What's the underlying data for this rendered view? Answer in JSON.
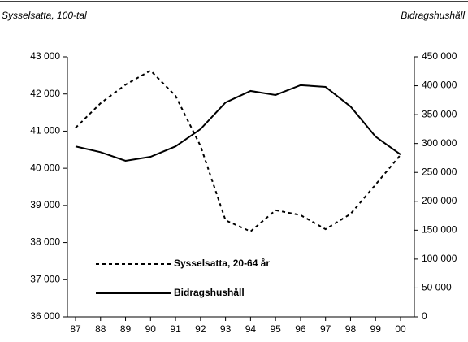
{
  "chart_data": {
    "type": "line",
    "y_label": "Sysselsatta, 100-tal",
    "y2_label": "Bidragshushåll",
    "categories": [
      "87",
      "88",
      "89",
      "90",
      "91",
      "92",
      "93",
      "94",
      "95",
      "96",
      "97",
      "98",
      "99",
      "00"
    ],
    "series": [
      {
        "name": "Sysselsatta, 20-64 år",
        "color": "#000000",
        "dash": true,
        "axis": "y",
        "values": [
          41090,
          41750,
          42250,
          42630,
          41950,
          40600,
          38600,
          38300,
          38870,
          38740,
          38360,
          38770,
          39560,
          40360
        ]
      },
      {
        "name": "Bidragshushåll",
        "color": "#000000",
        "dash": false,
        "axis": "y2",
        "values": [
          295000,
          285000,
          270000,
          277000,
          295000,
          325000,
          371000,
          391000,
          384000,
          401000,
          398000,
          364000,
          312000,
          281000
        ]
      }
    ],
    "ylim": [
      36000,
      43000
    ],
    "yticks": [
      {
        "value": 36000,
        "label": "36 000"
      },
      {
        "value": 37000,
        "label": "37 000"
      },
      {
        "value": 38000,
        "label": "38 000"
      },
      {
        "value": 39000,
        "label": "39 000"
      },
      {
        "value": 40000,
        "label": "40 000"
      },
      {
        "value": 41000,
        "label": "41 000"
      },
      {
        "value": 42000,
        "label": "42 000"
      },
      {
        "value": 43000,
        "label": "43 000"
      }
    ],
    "y2lim": [
      0,
      450000
    ],
    "y2ticks": [
      0,
      {
        "value": 50000,
        "label": "50 000"
      },
      {
        "value": 100000,
        "label": "100 000"
      },
      {
        "value": 150000,
        "label": "150 000"
      },
      {
        "value": 200000,
        "label": "200 000"
      },
      {
        "value": 250000,
        "label": "250 000"
      },
      {
        "value": 300000,
        "label": "300 000"
      },
      {
        "value": 350000,
        "label": "350 000"
      },
      {
        "value": 400000,
        "label": "400 000"
      },
      {
        "value": 450000,
        "label": "450 000"
      }
    ],
    "grid": false,
    "legend": "lower left"
  }
}
